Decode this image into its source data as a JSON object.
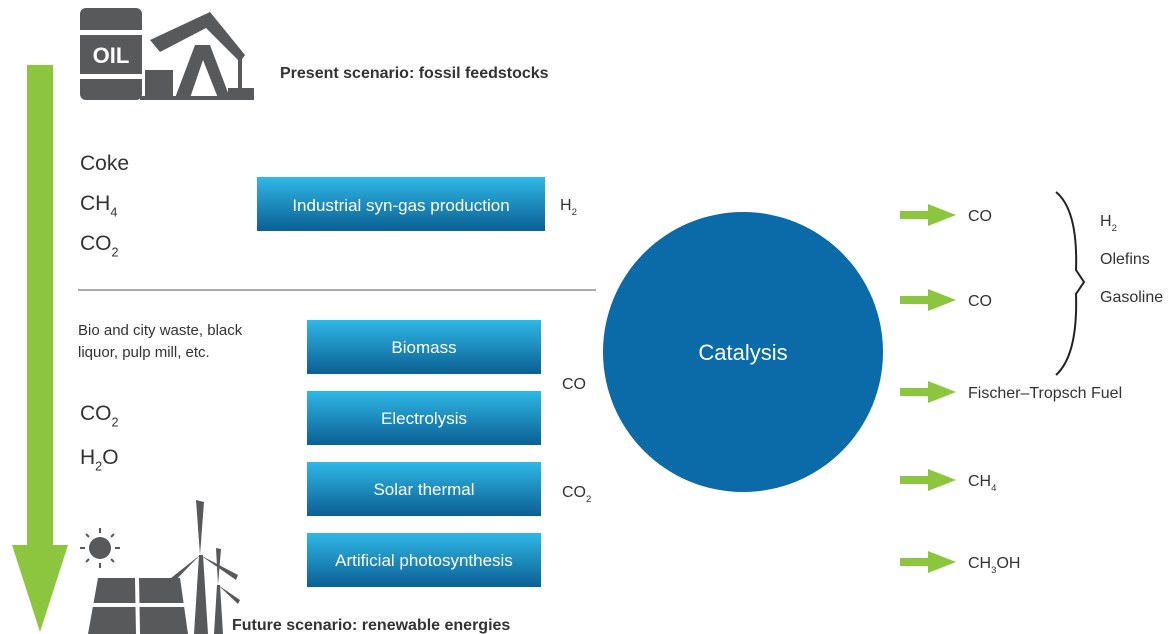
{
  "present_title": "Present scenario: fossil feedstocks",
  "future_title": "Future scenario: renewable energies",
  "fossil_inputs": [
    [
      "Coke"
    ],
    [
      "CH",
      "4"
    ],
    [
      "CO",
      "2"
    ]
  ],
  "fossil_process": {
    "label": "Industrial syn-gas production",
    "output": [
      "H",
      "2"
    ]
  },
  "renewable_inputs": {
    "note": [
      "Bio and city waste, black",
      "liquor, pulp mill, etc."
    ],
    "items": [
      [
        "CO",
        "2"
      ],
      [
        "H",
        "2",
        "O"
      ]
    ]
  },
  "renewable_processes": [
    "Biomass",
    "Electrolysis",
    "Solar thermal",
    "Artificial photosynthesis"
  ],
  "renewable_outputs": [
    [
      "CO"
    ],
    [
      "CO",
      "2"
    ]
  ],
  "catalysis": "Catalysis",
  "products": [
    [
      "CO"
    ],
    [
      "CO"
    ],
    [
      "Fischer–Tropsch Fuel"
    ],
    [
      "CH",
      "4"
    ],
    [
      "CH",
      "3",
      "OH"
    ]
  ],
  "co_products": [
    [
      "H",
      "2"
    ],
    [
      "Olefins"
    ],
    [
      "Gasoline"
    ]
  ]
}
